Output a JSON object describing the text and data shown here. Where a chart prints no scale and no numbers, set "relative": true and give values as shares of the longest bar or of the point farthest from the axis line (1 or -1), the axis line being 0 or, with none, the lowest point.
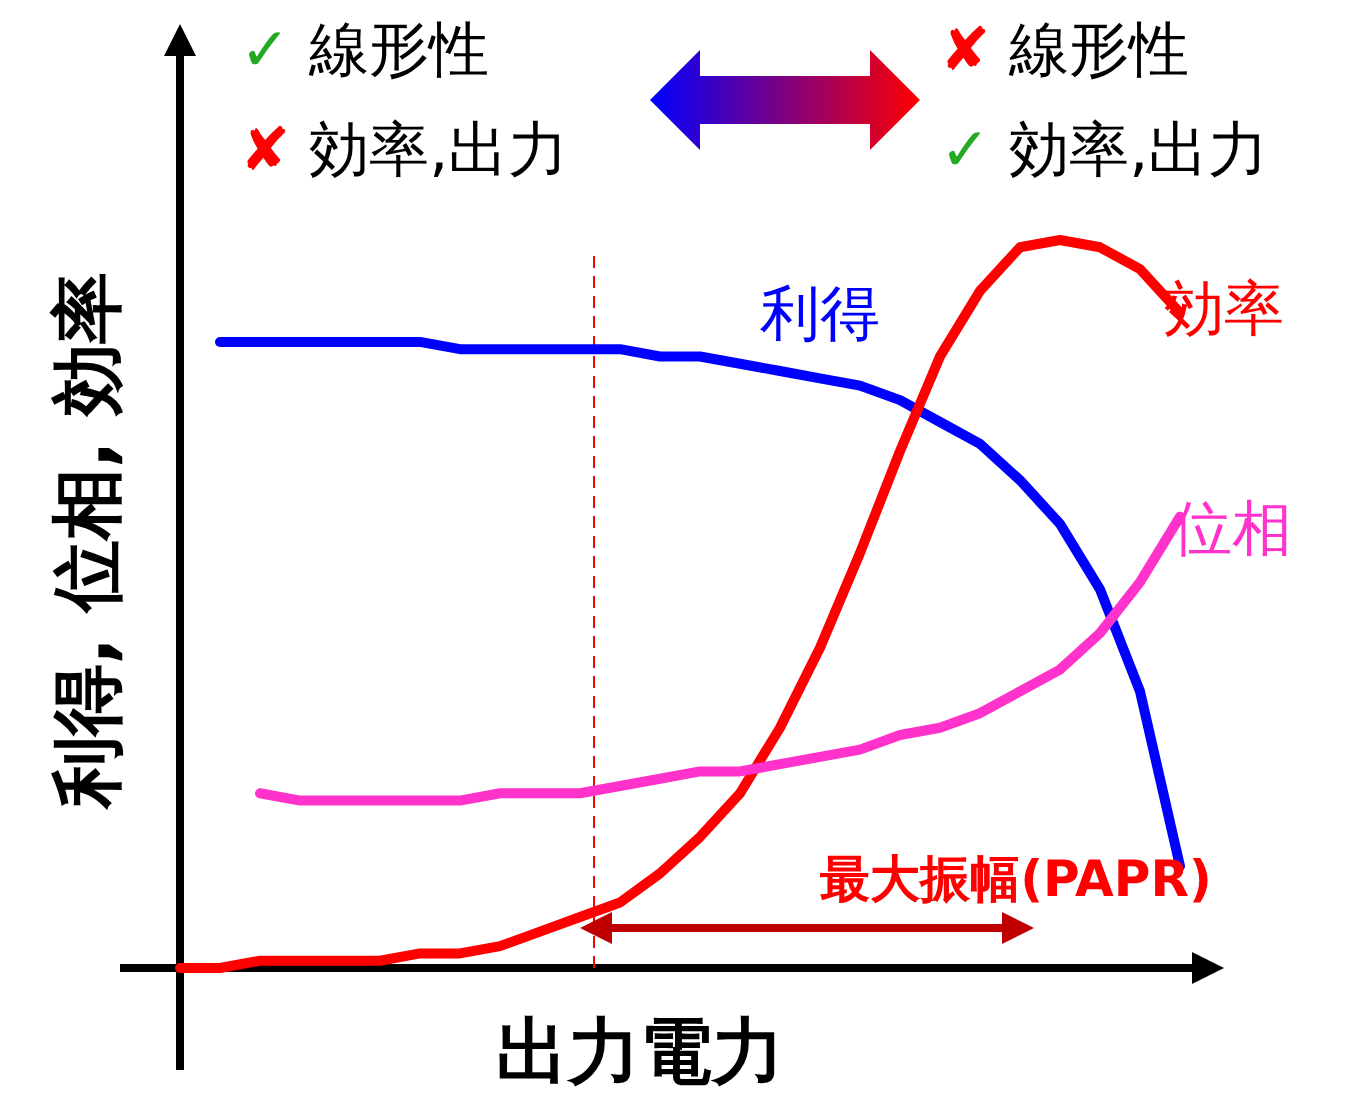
{
  "chart_data": {
    "type": "line",
    "relative": true,
    "xlabel": "出力電力",
    "ylabel": "利得, 位相, 効率",
    "categories": [
      null,
      null,
      null,
      null,
      null,
      null,
      null,
      null,
      null,
      null,
      null,
      null,
      null,
      null,
      null,
      null,
      null,
      null,
      null,
      null,
      null,
      null,
      null,
      null,
      null,
      null
    ],
    "series": [
      {
        "name": "利得",
        "color": "#0000ff",
        "values": [
          null,
          0.86,
          0.86,
          0.86,
          0.86,
          0.86,
          0.86,
          0.85,
          0.85,
          0.85,
          0.85,
          0.85,
          0.84,
          0.84,
          0.83,
          0.82,
          0.81,
          0.8,
          0.78,
          0.75,
          0.72,
          0.67,
          0.61,
          0.52,
          0.38,
          0.14
        ]
      },
      {
        "name": "効率",
        "color": "#ff0000",
        "values": [
          0.0,
          0.0,
          0.01,
          0.01,
          0.01,
          0.01,
          0.02,
          0.02,
          0.03,
          0.05,
          0.07,
          0.09,
          0.13,
          0.18,
          0.24,
          0.33,
          0.44,
          0.57,
          0.71,
          0.84,
          0.93,
          0.99,
          1.0,
          0.99,
          0.96,
          0.9
        ]
      },
      {
        "name": "位相",
        "color": "#ff33cc",
        "values": [
          null,
          null,
          0.24,
          0.23,
          0.23,
          0.23,
          0.23,
          0.23,
          0.24,
          0.24,
          0.24,
          0.25,
          0.26,
          0.27,
          0.27,
          0.28,
          0.29,
          0.3,
          0.32,
          0.33,
          0.35,
          0.38,
          0.41,
          0.46,
          0.53,
          0.62
        ]
      }
    ],
    "annotations": [
      "✓ 線形性",
      "✘ 効率,出力",
      "✘ 線形性",
      "✓ 効率,出力",
      "最大振幅(PAPR)"
    ],
    "legend": false,
    "grid": false,
    "marker": "none",
    "line_style": "solid"
  }
}
